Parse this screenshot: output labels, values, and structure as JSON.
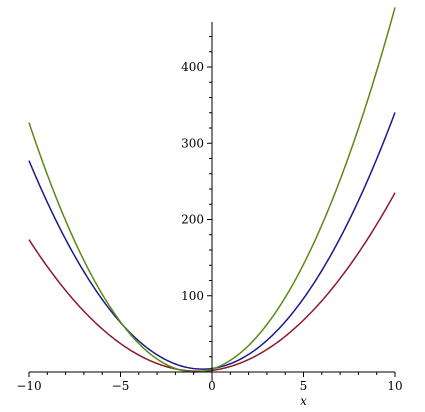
{
  "chart_data": {
    "type": "line",
    "xlabel": "x",
    "ylabel": "",
    "xlim": [
      -10,
      10
    ],
    "ylim": [
      -5,
      460
    ],
    "grid": false,
    "x_ticks": [
      {
        "value": -10,
        "label": "−10"
      },
      {
        "value": -5,
        "label": "−5"
      },
      {
        "value": 0,
        "label": "0"
      },
      {
        "value": 5,
        "label": "5"
      },
      {
        "value": 10,
        "label": "10"
      }
    ],
    "y_ticks": [
      {
        "value": 100,
        "label": "100"
      },
      {
        "value": 200,
        "label": "200"
      },
      {
        "value": 300,
        "label": "300"
      },
      {
        "value": 400,
        "label": "400"
      }
    ],
    "x": [
      -10,
      -8,
      -6,
      -4,
      -2,
      0,
      2,
      4,
      6,
      8,
      10
    ],
    "series": [
      {
        "color": "#8b1a2b",
        "values": [
          174,
          107,
          56,
          22,
          4,
          2,
          16,
          47,
          94,
          157,
          234
        ]
      },
      {
        "color": "#1a1a8c",
        "values": [
          282,
          175,
          93,
          36,
          6,
          1,
          22,
          69,
          142,
          240,
          323
        ]
      },
      {
        "color": "#5a8a14",
        "values": [
          338,
          198,
          95,
          29,
          0,
          -3,
          33,
          106,
          217,
          325,
          458
        ]
      }
    ]
  }
}
